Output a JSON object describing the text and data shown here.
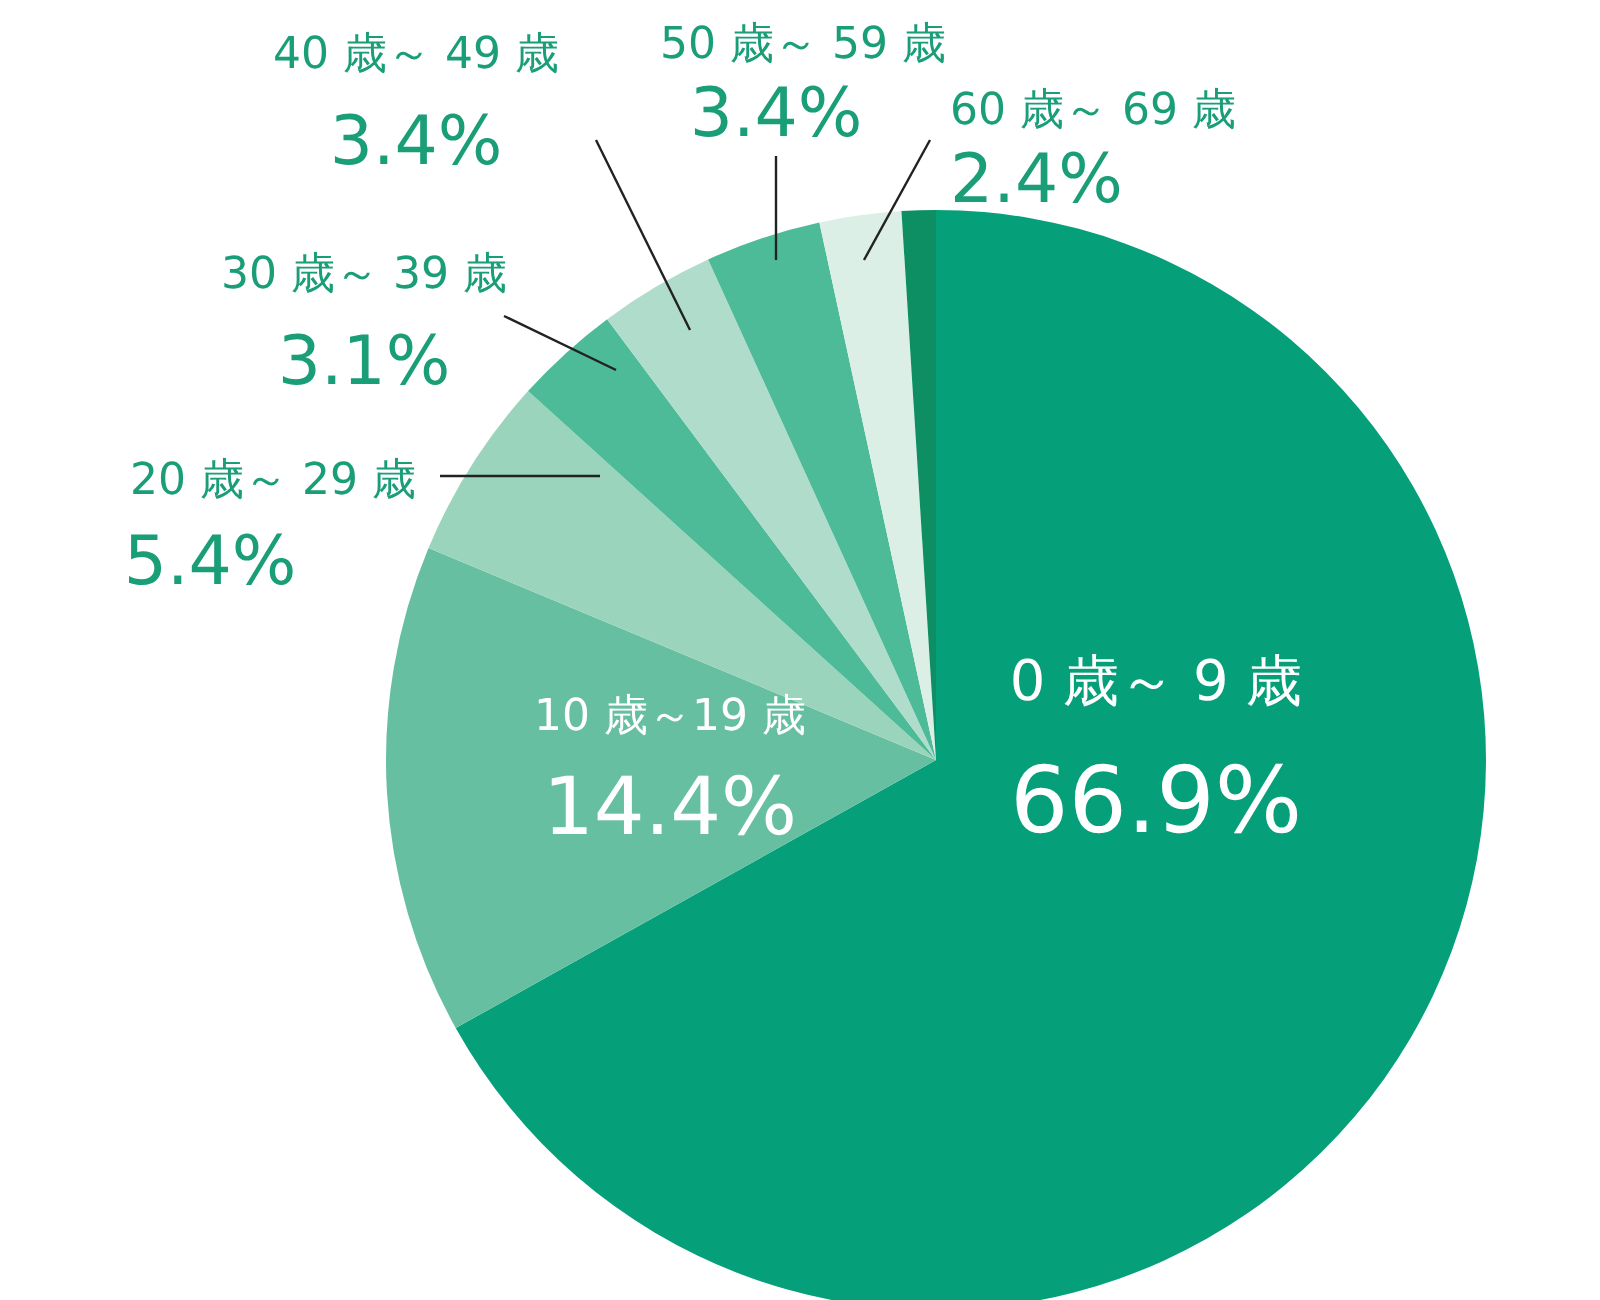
{
  "chart_data": {
    "type": "pie",
    "categories": [
      "0 歳～ 9 歳",
      "10 歳～19 歳",
      "20 歳～ 29 歳",
      "30 歳～ 39 歳",
      "40 歳～ 49 歳",
      "50 歳～ 59 歳",
      "60 歳～ 69 歳",
      null
    ],
    "values": [
      66.9,
      14.4,
      5.4,
      3.1,
      3.4,
      3.4,
      2.4,
      1.0
    ],
    "value_labels": [
      "66.9%",
      "14.4%",
      "5.4%",
      "3.1%",
      "3.4%",
      "3.4%",
      "2.4%",
      null
    ],
    "colors": [
      "#05a07a",
      "#66bfa0",
      "#9bd4bc",
      "#4dba98",
      "#b0dccb",
      "#4dba98",
      "#dcefe6",
      "#0d8f63"
    ]
  }
}
